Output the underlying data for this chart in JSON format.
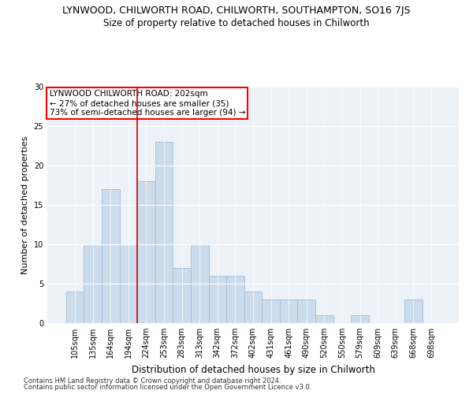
{
  "title": "LYNWOOD, CHILWORTH ROAD, CHILWORTH, SOUTHAMPTON, SO16 7JS",
  "subtitle": "Size of property relative to detached houses in Chilworth",
  "xlabel": "Distribution of detached houses by size in Chilworth",
  "ylabel": "Number of detached properties",
  "bar_labels": [
    "105sqm",
    "135sqm",
    "164sqm",
    "194sqm",
    "224sqm",
    "253sqm",
    "283sqm",
    "313sqm",
    "342sqm",
    "372sqm",
    "402sqm",
    "431sqm",
    "461sqm",
    "490sqm",
    "520sqm",
    "550sqm",
    "579sqm",
    "609sqm",
    "639sqm",
    "668sqm",
    "698sqm"
  ],
  "bar_values": [
    4,
    10,
    17,
    10,
    18,
    23,
    7,
    10,
    6,
    6,
    4,
    3,
    3,
    3,
    1,
    0,
    1,
    0,
    0,
    3,
    0
  ],
  "bar_color": "#ccdcec",
  "bar_edge_color": "#a8c0d8",
  "property_line_x": 3.5,
  "annotation_title": "LYNWOOD CHILWORTH ROAD: 202sqm",
  "annotation_line1": "← 27% of detached houses are smaller (35)",
  "annotation_line2": "73% of semi-detached houses are larger (94) →",
  "vline_color": "#cc0000",
  "ylim": [
    0,
    30
  ],
  "yticks": [
    0,
    5,
    10,
    15,
    20,
    25,
    30
  ],
  "footnote1": "Contains HM Land Registry data © Crown copyright and database right 2024.",
  "footnote2": "Contains public sector information licensed under the Open Government Licence v3.0.",
  "bg_color": "#edf2f8",
  "title_fontsize": 9,
  "subtitle_fontsize": 8.5,
  "tick_fontsize": 7,
  "ylabel_fontsize": 8,
  "xlabel_fontsize": 8.5,
  "annot_fontsize": 7.5,
  "footnote_fontsize": 6
}
